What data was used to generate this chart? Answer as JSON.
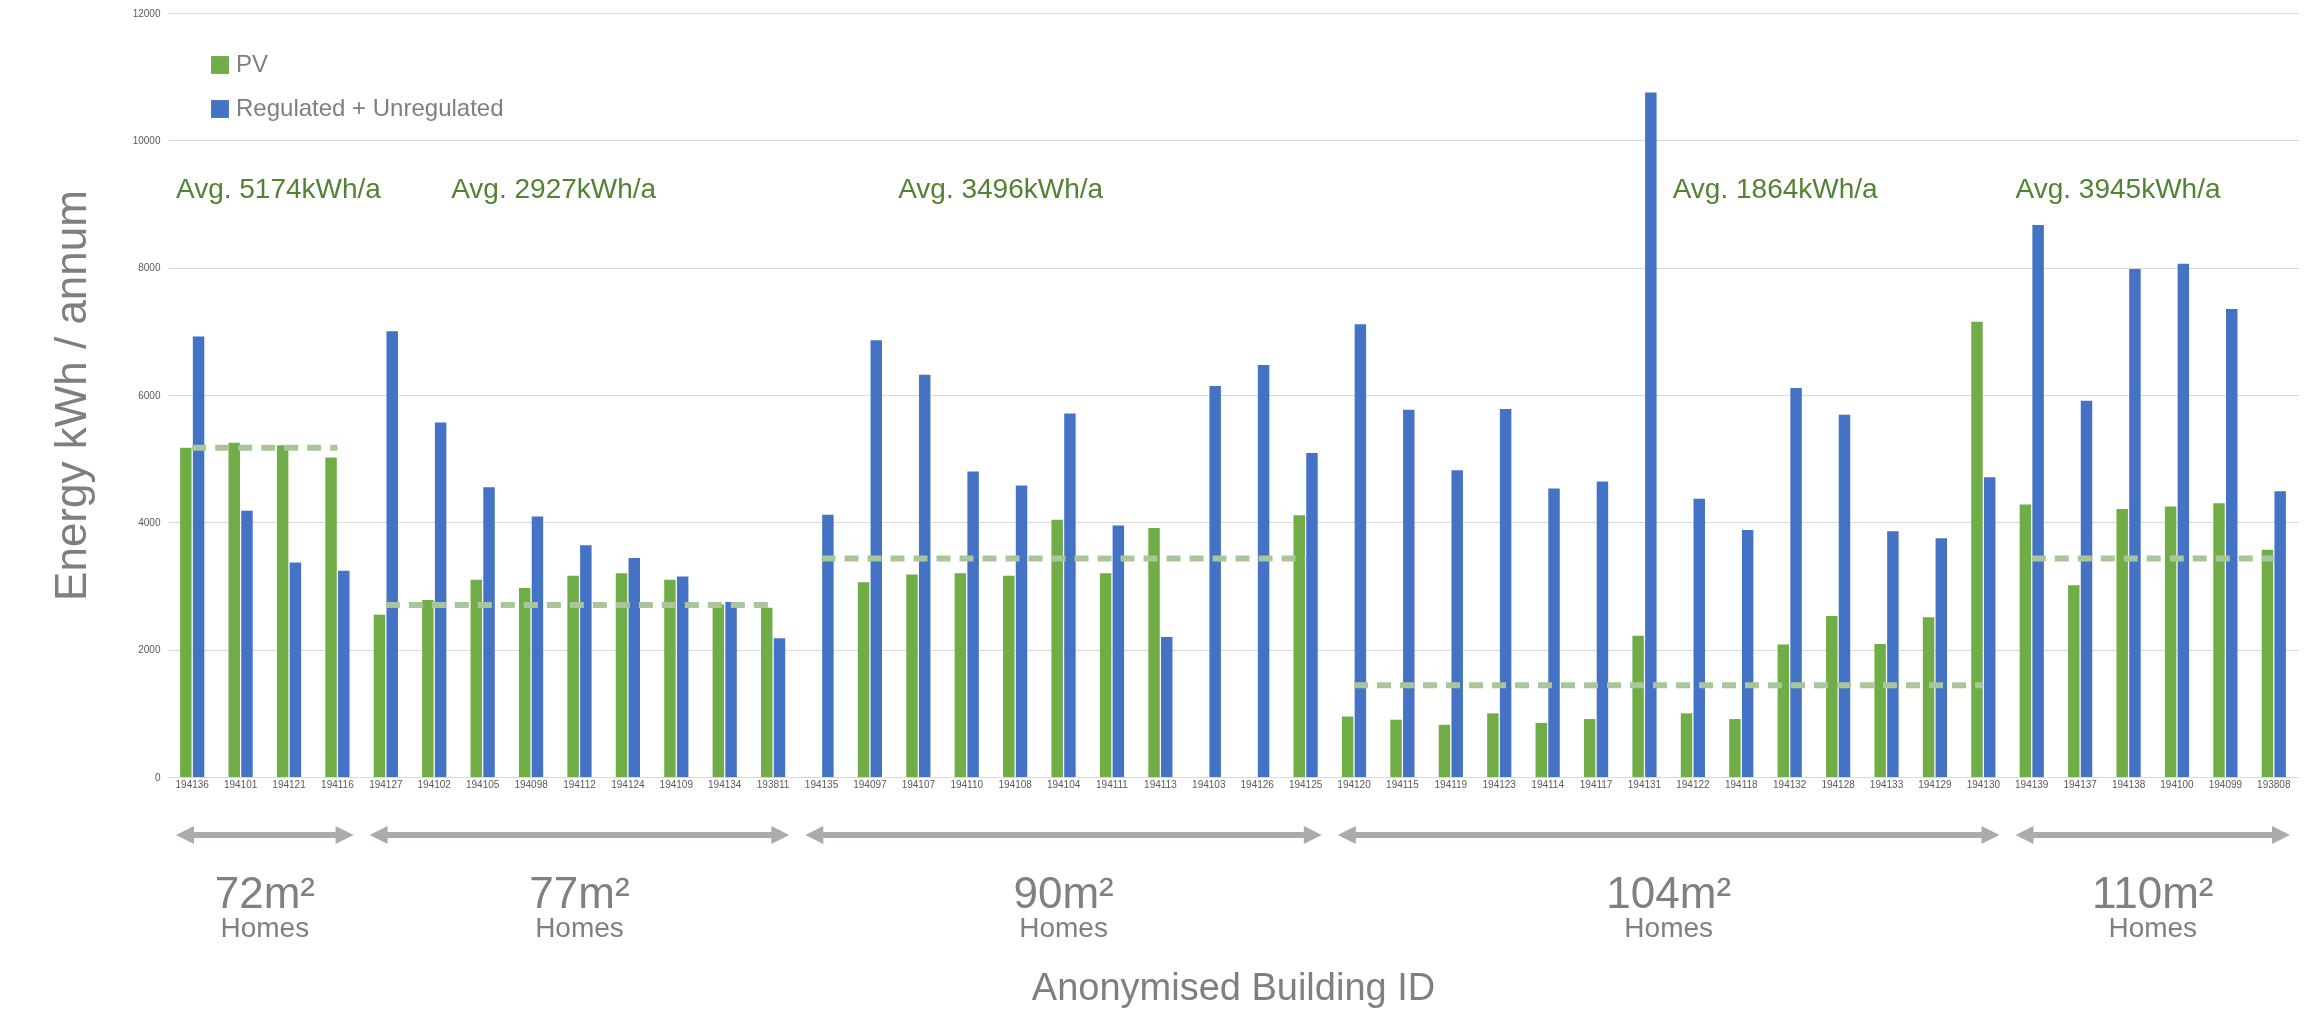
{
  "chart_data": {
    "type": "bar",
    "xlabel": "Anonymised Building ID",
    "ylabel": "Energy kWh / annum",
    "categories": [
      "194136",
      "194101",
      "194121",
      "194116",
      "194127",
      "194102",
      "194105",
      "194098",
      "194112",
      "194124",
      "194109",
      "194134",
      "193811",
      "194135",
      "194097",
      "194107",
      "194110",
      "194108",
      "194104",
      "194111",
      "194113",
      "194103",
      "194126",
      "194125",
      "194120",
      "194115",
      "194119",
      "194123",
      "194114",
      "194117",
      "194131",
      "194122",
      "194118",
      "194132",
      "194128",
      "194133",
      "194129",
      "194130",
      "194139",
      "194137",
      "194138",
      "194100",
      "194099",
      "193808"
    ],
    "series": [
      {
        "name": "PV",
        "color": "#70ad47",
        "values": [
          5170,
          5250,
          5210,
          5020,
          2550,
          2780,
          3100,
          2970,
          3160,
          3200,
          3100,
          2710,
          2660,
          null,
          3060,
          3180,
          3200,
          3160,
          4040,
          3200,
          3910,
          null,
          null,
          4110,
          950,
          900,
          820,
          1000,
          850,
          910,
          2220,
          1000,
          910,
          2080,
          2530,
          2090,
          2510,
          7150,
          4280,
          3010,
          4210,
          4250,
          4300,
          3570
        ]
      },
      {
        "name": "Regulated + Unregulated",
        "color": "#4472c4",
        "values": [
          6920,
          4180,
          3370,
          3240,
          7000,
          5570,
          4550,
          4090,
          3640,
          3440,
          3150,
          2750,
          2180,
          4120,
          6860,
          6320,
          4800,
          4580,
          5710,
          3950,
          2200,
          6140,
          6470,
          5090,
          7110,
          5770,
          4820,
          5780,
          4530,
          4640,
          10750,
          4370,
          3880,
          6110,
          5690,
          3860,
          3750,
          4710,
          8670,
          5910,
          7980,
          8060,
          7350,
          4490
        ]
      },
      {
        "type": "line",
        "color": "#a9c69b",
        "line_style": "dashed",
        "values": [
          5170,
          5170,
          5170,
          5170,
          null,
          null,
          null,
          null,
          null,
          null,
          null,
          null,
          null,
          null,
          null,
          null,
          null,
          null,
          null,
          null,
          null,
          null,
          null,
          null,
          null,
          null,
          null,
          null,
          null,
          null,
          null,
          null,
          null,
          null,
          null,
          null,
          null,
          null,
          null,
          null,
          null,
          null,
          null,
          null
        ]
      },
      {
        "type": "line",
        "color": "#a9c69b",
        "line_style": "dashed",
        "values": [
          null,
          null,
          null,
          null,
          2700,
          2700,
          2700,
          2700,
          2700,
          2700,
          2700,
          2700,
          2700,
          null,
          null,
          null,
          null,
          null,
          null,
          null,
          null,
          null,
          null,
          null,
          null,
          null,
          null,
          null,
          null,
          null,
          null,
          null,
          null,
          null,
          null,
          null,
          null,
          null,
          null,
          null,
          null,
          null,
          null,
          null
        ]
      },
      {
        "type": "line",
        "color": "#a9c69b",
        "line_style": "dashed",
        "values": [
          null,
          null,
          null,
          null,
          null,
          null,
          null,
          null,
          null,
          null,
          null,
          null,
          null,
          3430,
          3430,
          3430,
          3430,
          3430,
          3430,
          3430,
          3430,
          3430,
          3430,
          3430,
          null,
          null,
          null,
          null,
          null,
          null,
          null,
          null,
          null,
          null,
          null,
          null,
          null,
          null,
          null,
          null,
          null,
          null,
          null,
          null
        ]
      },
      {
        "type": "line",
        "color": "#a9c69b",
        "line_style": "dashed",
        "values": [
          null,
          null,
          null,
          null,
          null,
          null,
          null,
          null,
          null,
          null,
          null,
          null,
          null,
          null,
          null,
          null,
          null,
          null,
          null,
          null,
          null,
          null,
          null,
          null,
          1440,
          1440,
          1440,
          1440,
          1440,
          1440,
          1440,
          1440,
          1440,
          1440,
          1440,
          1440,
          1440,
          1440,
          null,
          null,
          null,
          null,
          null,
          null
        ]
      },
      {
        "type": "line",
        "color": "#a9c69b",
        "line_style": "dashed",
        "values": [
          null,
          null,
          null,
          null,
          null,
          null,
          null,
          null,
          null,
          null,
          null,
          null,
          null,
          null,
          null,
          null,
          null,
          null,
          null,
          null,
          null,
          null,
          null,
          null,
          null,
          null,
          null,
          null,
          null,
          null,
          null,
          null,
          null,
          null,
          null,
          null,
          null,
          null,
          3430,
          3430,
          3430,
          3430,
          3430,
          3430
        ]
      }
    ],
    "ylim": [
      0,
      12000
    ],
    "yticks": [
      0,
      2000,
      4000,
      6000,
      8000,
      10000,
      12000
    ],
    "grid": "y",
    "legend": "top left",
    "annotations": [
      "Avg. 5174kWh/a",
      "Avg. 2927kWh/a",
      "Avg. 3496kWh/a",
      "Avg. 1864kWh/a",
      "Avg. 3945kWh/a",
      "72m²\nHomes",
      "77m²\nHomes",
      "90m²\nHomes",
      "104m²\nHomes",
      "110m²\nHomes"
    ]
  }
}
